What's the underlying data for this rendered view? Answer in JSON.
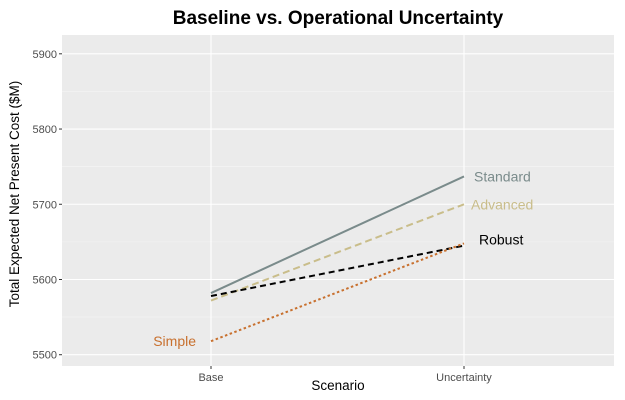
{
  "chart_data": {
    "type": "line",
    "title": "Baseline vs. Operational Uncertainty",
    "xlabel": "Scenario",
    "ylabel": "Total Expected Net Present Cost ($M)",
    "categories": [
      "Base",
      "Uncertainty"
    ],
    "ylim": [
      5485,
      5925
    ],
    "yticks": [
      5500,
      5600,
      5700,
      5800,
      5900
    ],
    "grid": true,
    "legend": "direct labels",
    "series": [
      {
        "name": "Standard",
        "values": [
          5582,
          5737
        ],
        "color": "#7a8b8b",
        "dash": "solid",
        "label_at": "end"
      },
      {
        "name": "Advanced",
        "values": [
          5572,
          5700
        ],
        "color": "#c9bd8a",
        "dash": "long-dash",
        "label_at": "end"
      },
      {
        "name": "Robust",
        "values": [
          5578,
          5645
        ],
        "color": "#000000",
        "dash": "dash",
        "label_at": "end"
      },
      {
        "name": "Simple",
        "values": [
          5518,
          5648
        ],
        "color": "#c8702e",
        "dash": "dot",
        "label_at": "start"
      }
    ]
  }
}
